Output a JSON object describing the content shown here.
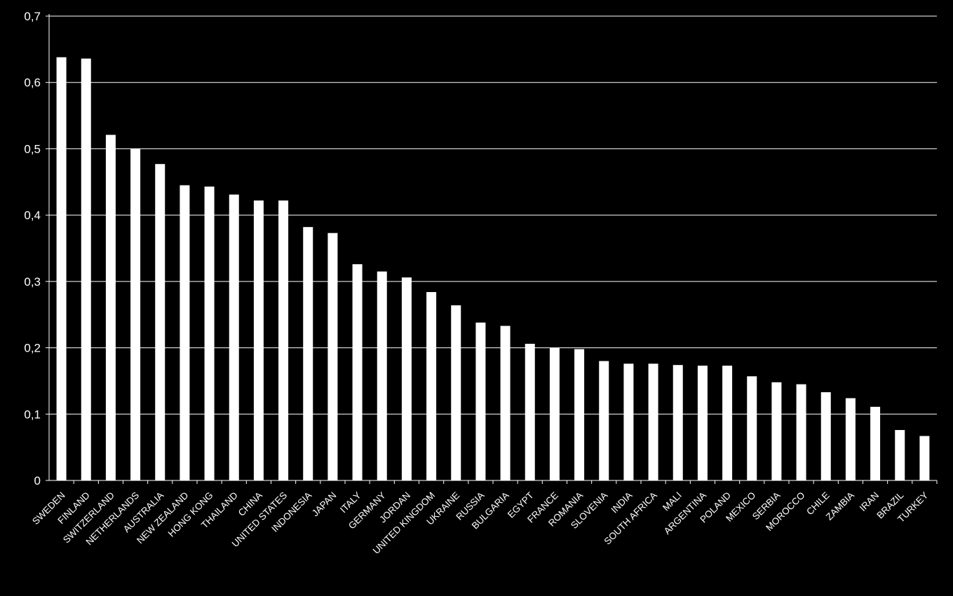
{
  "chart_data": {
    "type": "bar",
    "title": "",
    "xlabel": "",
    "ylabel": "",
    "ylim": [
      0,
      0.7
    ],
    "yticks": [
      "0",
      "0,1",
      "0,2",
      "0,3",
      "0,4",
      "0,5",
      "0,6",
      "0,7"
    ],
    "grid": true,
    "legend": "none",
    "colors": {
      "background": "#000000",
      "bar": "#ffffff",
      "grid": "#ffffff",
      "text": "#ffffff"
    },
    "categories": [
      "SWEDEN",
      "FINLAND",
      "SWITZERLAND",
      "NETHERLANDS",
      "AUSTRALIA",
      "NEW ZEALAND",
      "HONG KONG",
      "THAILAND",
      "CHINA",
      "UNITED STATES",
      "INDONESIA",
      "JAPAN",
      "ITALY",
      "GERMANY",
      "JORDAN",
      "UNITED KINGDOM",
      "UKRAINE",
      "RUSSIA",
      "BULGARIA",
      "EGYPT",
      "FRANCE",
      "ROMANIA",
      "SLOVENIA",
      "INDIA",
      "SOUTH AFRICA",
      "MALI",
      "ARGENTINA",
      "POLAND",
      "MEXICO",
      "SERBIA",
      "MOROCCO",
      "CHILE",
      "ZAMBIA",
      "IRAN",
      "BRAZIL",
      "TURKEY"
    ],
    "values": [
      0.638,
      0.636,
      0.521,
      0.5,
      0.477,
      0.445,
      0.443,
      0.431,
      0.422,
      0.422,
      0.382,
      0.373,
      0.326,
      0.315,
      0.306,
      0.284,
      0.264,
      0.238,
      0.233,
      0.206,
      0.2,
      0.198,
      0.18,
      0.176,
      0.176,
      0.174,
      0.173,
      0.173,
      0.157,
      0.148,
      0.145,
      0.133,
      0.124,
      0.111,
      0.076,
      0.067
    ]
  }
}
